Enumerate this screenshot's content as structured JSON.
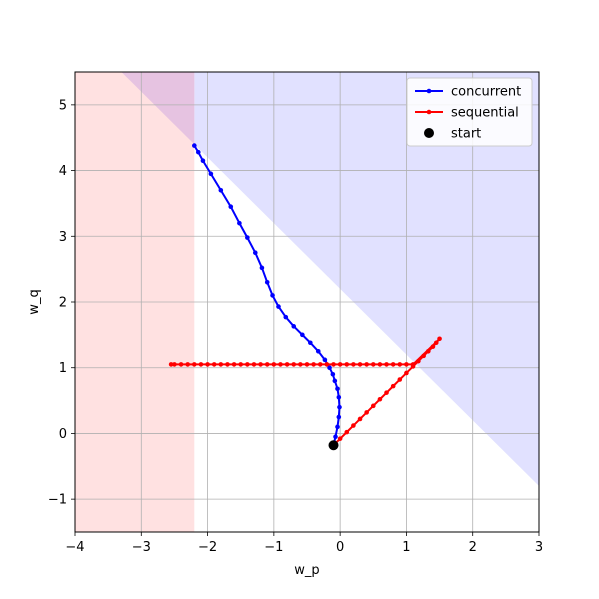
{
  "chart_data": {
    "type": "line",
    "xlabel": "w_p",
    "ylabel": "w_q",
    "xlim": [
      -4,
      3
    ],
    "ylim": [
      -1.5,
      5.5
    ],
    "xticks": [
      "−4",
      "−3",
      "−2",
      "−1",
      "0",
      "1",
      "2",
      "3"
    ],
    "yticks": [
      "−1",
      "0",
      "1",
      "2",
      "3",
      "4",
      "5"
    ],
    "grid": true,
    "legend_position": "top-right",
    "legend": [
      "concurrent",
      "sequential",
      "start"
    ],
    "colors": {
      "concurrent": "#0000ff",
      "sequential": "#ff0000",
      "start": "#000000",
      "region_red": "#ffe1e1",
      "region_blue": "#e1e1ff",
      "region_overlap": "#e6c3e1"
    },
    "regions": {
      "red_region_x_max": -2.2,
      "blue_region": "w_p > -2.2 and w_p + w_q > 2.2"
    },
    "start": {
      "x": -0.1,
      "y": -0.18
    },
    "series": [
      {
        "name": "concurrent",
        "color": "#0000ff",
        "points": [
          [
            -0.1,
            -0.18
          ],
          [
            -0.07,
            -0.05
          ],
          [
            -0.04,
            0.1
          ],
          [
            -0.02,
            0.25
          ],
          [
            -0.01,
            0.4
          ],
          [
            -0.02,
            0.55
          ],
          [
            -0.04,
            0.68
          ],
          [
            -0.08,
            0.8
          ],
          [
            -0.11,
            0.9
          ],
          [
            -0.16,
            1.0
          ],
          [
            -0.23,
            1.12
          ],
          [
            -0.33,
            1.25
          ],
          [
            -0.45,
            1.38
          ],
          [
            -0.57,
            1.5
          ],
          [
            -0.7,
            1.63
          ],
          [
            -0.82,
            1.77
          ],
          [
            -0.93,
            1.93
          ],
          [
            -1.02,
            2.1
          ],
          [
            -1.1,
            2.3
          ],
          [
            -1.18,
            2.52
          ],
          [
            -1.28,
            2.75
          ],
          [
            -1.4,
            2.98
          ],
          [
            -1.52,
            3.2
          ],
          [
            -1.65,
            3.45
          ],
          [
            -1.8,
            3.7
          ],
          [
            -1.95,
            3.95
          ],
          [
            -2.07,
            4.15
          ],
          [
            -2.14,
            4.28
          ],
          [
            -2.2,
            4.38
          ]
        ]
      },
      {
        "name": "sequential",
        "color": "#ff0000",
        "points": [
          [
            -0.1,
            -0.18
          ],
          [
            0.0,
            -0.08
          ],
          [
            0.1,
            0.02
          ],
          [
            0.2,
            0.12
          ],
          [
            0.3,
            0.22
          ],
          [
            0.4,
            0.32
          ],
          [
            0.5,
            0.42
          ],
          [
            0.6,
            0.52
          ],
          [
            0.7,
            0.62
          ],
          [
            0.8,
            0.72
          ],
          [
            0.9,
            0.82
          ],
          [
            1.0,
            0.92
          ],
          [
            1.1,
            1.02
          ],
          [
            1.18,
            1.1
          ],
          [
            1.26,
            1.18
          ],
          [
            1.33,
            1.25
          ],
          [
            1.4,
            1.32
          ],
          [
            1.45,
            1.38
          ],
          [
            1.5,
            1.44
          ],
          [
            1.1,
            1.05
          ],
          [
            1.0,
            1.05
          ],
          [
            0.9,
            1.05
          ],
          [
            0.8,
            1.05
          ],
          [
            0.7,
            1.05
          ],
          [
            0.6,
            1.05
          ],
          [
            0.5,
            1.05
          ],
          [
            0.4,
            1.05
          ],
          [
            0.3,
            1.05
          ],
          [
            0.2,
            1.05
          ],
          [
            0.1,
            1.05
          ],
          [
            0.0,
            1.05
          ],
          [
            -0.1,
            1.05
          ],
          [
            -0.2,
            1.05
          ],
          [
            -0.3,
            1.05
          ],
          [
            -0.4,
            1.05
          ],
          [
            -0.5,
            1.05
          ],
          [
            -0.6,
            1.05
          ],
          [
            -0.7,
            1.05
          ],
          [
            -0.8,
            1.05
          ],
          [
            -0.9,
            1.05
          ],
          [
            -1.0,
            1.05
          ],
          [
            -1.1,
            1.05
          ],
          [
            -1.2,
            1.05
          ],
          [
            -1.3,
            1.05
          ],
          [
            -1.4,
            1.05
          ],
          [
            -1.5,
            1.05
          ],
          [
            -1.6,
            1.05
          ],
          [
            -1.7,
            1.05
          ],
          [
            -1.8,
            1.05
          ],
          [
            -1.9,
            1.05
          ],
          [
            -2.0,
            1.05
          ],
          [
            -2.1,
            1.05
          ],
          [
            -2.2,
            1.05
          ],
          [
            -2.3,
            1.05
          ],
          [
            -2.4,
            1.05
          ],
          [
            -2.5,
            1.05
          ],
          [
            -2.55,
            1.05
          ]
        ]
      }
    ]
  }
}
